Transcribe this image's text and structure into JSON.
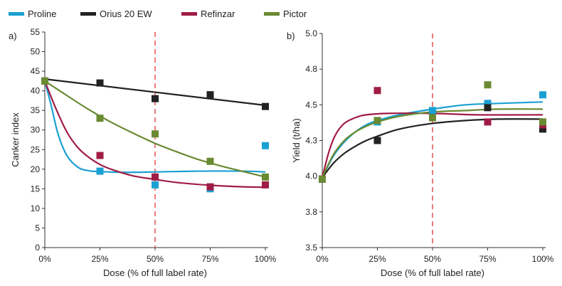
{
  "legend": [
    {
      "label": "Proline",
      "color": "#1aa0d2"
    },
    {
      "label": "Orius 20 EW",
      "color": "#222222"
    },
    {
      "label": "Refinzar",
      "color": "#a01c45"
    },
    {
      "label": "Pictor",
      "color": "#6a8a32"
    }
  ],
  "reference_line_color": "#e05050",
  "chart_data": [
    {
      "type": "scatter",
      "panel_label": "a)",
      "xlabel": "Dose (% of full label rate)",
      "ylabel": "Canker index",
      "xlim": [
        0,
        100
      ],
      "ylim": [
        0,
        55
      ],
      "x_ticks": [
        0,
        25,
        50,
        75,
        100
      ],
      "x_tick_labels": [
        "0%",
        "25%",
        "50%",
        "75%",
        "100%"
      ],
      "y_ticks": [
        0,
        5,
        10,
        15,
        20,
        25,
        30,
        35,
        40,
        45,
        50,
        55
      ],
      "y_tick_labels": [
        "0",
        "5",
        "10",
        "15",
        "20",
        "25",
        "30",
        "35",
        "40",
        "45",
        "50",
        "55"
      ],
      "reference_line_x": 50,
      "series": [
        {
          "name": "Proline",
          "color": "#1aa0d2",
          "points": [
            [
              0,
              42.5
            ],
            [
              25,
              19.5
            ],
            [
              50,
              16
            ],
            [
              75,
              15
            ],
            [
              100,
              26
            ]
          ],
          "fit": [
            [
              0,
              42.5
            ],
            [
              3,
              36
            ],
            [
              6,
              29
            ],
            [
              10,
              23.5
            ],
            [
              15,
              20.5
            ],
            [
              20,
              19.6
            ],
            [
              25,
              19.4
            ],
            [
              35,
              19.2
            ],
            [
              50,
              19.3
            ],
            [
              70,
              19.5
            ],
            [
              90,
              19.5
            ],
            [
              100,
              19.3
            ]
          ]
        },
        {
          "name": "Orius 20 EW",
          "color": "#222222",
          "points": [
            [
              0,
              42.5
            ],
            [
              25,
              42
            ],
            [
              50,
              38
            ],
            [
              75,
              39
            ],
            [
              100,
              36
            ]
          ],
          "fit": [
            [
              0,
              43
            ],
            [
              100,
              36.3
            ]
          ]
        },
        {
          "name": "Refinzar",
          "color": "#a01c45",
          "points": [
            [
              0,
              42.5
            ],
            [
              25,
              23.5
            ],
            [
              50,
              18
            ],
            [
              75,
              15.5
            ],
            [
              100,
              16
            ]
          ],
          "fit": [
            [
              0,
              42.5
            ],
            [
              5,
              35.5
            ],
            [
              10,
              29.5
            ],
            [
              15,
              25.5
            ],
            [
              20,
              23
            ],
            [
              25,
              21.2
            ],
            [
              30,
              20
            ],
            [
              40,
              18.3
            ],
            [
              50,
              17.4
            ],
            [
              60,
              16.6
            ],
            [
              75,
              15.9
            ],
            [
              90,
              15.5
            ],
            [
              100,
              15.4
            ]
          ]
        },
        {
          "name": "Pictor",
          "color": "#6a8a32",
          "points": [
            [
              0,
              42.5
            ],
            [
              25,
              33
            ],
            [
              50,
              29
            ],
            [
              75,
              22
            ],
            [
              100,
              18
            ]
          ],
          "fit": [
            [
              0,
              42.5
            ],
            [
              10,
              38.8
            ],
            [
              20,
              35.2
            ],
            [
              30,
              32
            ],
            [
              40,
              29.2
            ],
            [
              50,
              26.6
            ],
            [
              60,
              24.4
            ],
            [
              70,
              22.4
            ],
            [
              80,
              20.8
            ],
            [
              90,
              19.4
            ],
            [
              100,
              18
            ]
          ]
        }
      ]
    },
    {
      "type": "scatter",
      "panel_label": "b)",
      "xlabel": "Dose (% of full label rate)",
      "ylabel": "Yield (t/ha)",
      "xlim": [
        0,
        100
      ],
      "ylim": [
        3.5,
        5.0
      ],
      "x_ticks": [
        0,
        25,
        50,
        75,
        100
      ],
      "x_tick_labels": [
        "0%",
        "25%",
        "50%",
        "75%",
        "100%"
      ],
      "y_ticks": [
        3.5,
        3.75,
        4.0,
        4.25,
        4.5,
        4.75,
        5.0
      ],
      "y_tick_labels": [
        "3.5",
        "3.8",
        "4.0",
        "4.3",
        "4.5",
        "4.8",
        "5.0"
      ],
      "reference_line_x": 50,
      "series": [
        {
          "name": "Proline",
          "color": "#1aa0d2",
          "points": [
            [
              0,
              3.98
            ],
            [
              25,
              4.38
            ],
            [
              50,
              4.46
            ],
            [
              75,
              4.51
            ],
            [
              100,
              4.57
            ]
          ],
          "fit": [
            [
              0,
              3.99
            ],
            [
              5,
              4.14
            ],
            [
              10,
              4.24
            ],
            [
              15,
              4.31
            ],
            [
              20,
              4.36
            ],
            [
              25,
              4.39
            ],
            [
              35,
              4.43
            ],
            [
              50,
              4.47
            ],
            [
              65,
              4.5
            ],
            [
              80,
              4.51
            ],
            [
              100,
              4.52
            ]
          ]
        },
        {
          "name": "Orius 20 EW",
          "color": "#222222",
          "points": [
            [
              0,
              3.98
            ],
            [
              25,
              4.25
            ],
            [
              50,
              4.41
            ],
            [
              75,
              4.48
            ],
            [
              100,
              4.33
            ]
          ],
          "fit": [
            [
              0,
              3.99
            ],
            [
              5,
              4.09
            ],
            [
              10,
              4.16
            ],
            [
              15,
              4.21
            ],
            [
              20,
              4.25
            ],
            [
              25,
              4.28
            ],
            [
              35,
              4.33
            ],
            [
              50,
              4.37
            ],
            [
              65,
              4.39
            ],
            [
              80,
              4.4
            ],
            [
              100,
              4.4
            ]
          ]
        },
        {
          "name": "Refinzar",
          "color": "#a01c45",
          "points": [
            [
              0,
              3.98
            ],
            [
              25,
              4.6
            ],
            [
              50,
              4.41
            ],
            [
              75,
              4.38
            ],
            [
              100,
              4.36
            ]
          ],
          "fit": [
            [
              0,
              3.99
            ],
            [
              3,
              4.17
            ],
            [
              6,
              4.29
            ],
            [
              10,
              4.37
            ],
            [
              15,
              4.41
            ],
            [
              20,
              4.43
            ],
            [
              30,
              4.44
            ],
            [
              50,
              4.44
            ],
            [
              70,
              4.43
            ],
            [
              100,
              4.43
            ]
          ]
        },
        {
          "name": "Pictor",
          "color": "#6a8a32",
          "points": [
            [
              0,
              3.98
            ],
            [
              25,
              4.39
            ],
            [
              50,
              4.41
            ],
            [
              75,
              4.64
            ],
            [
              100,
              4.38
            ]
          ],
          "fit": [
            [
              0,
              3.99
            ],
            [
              5,
              4.15
            ],
            [
              10,
              4.25
            ],
            [
              15,
              4.31
            ],
            [
              20,
              4.35
            ],
            [
              25,
              4.38
            ],
            [
              35,
              4.42
            ],
            [
              50,
              4.45
            ],
            [
              65,
              4.46
            ],
            [
              80,
              4.47
            ],
            [
              100,
              4.47
            ]
          ]
        }
      ]
    }
  ]
}
